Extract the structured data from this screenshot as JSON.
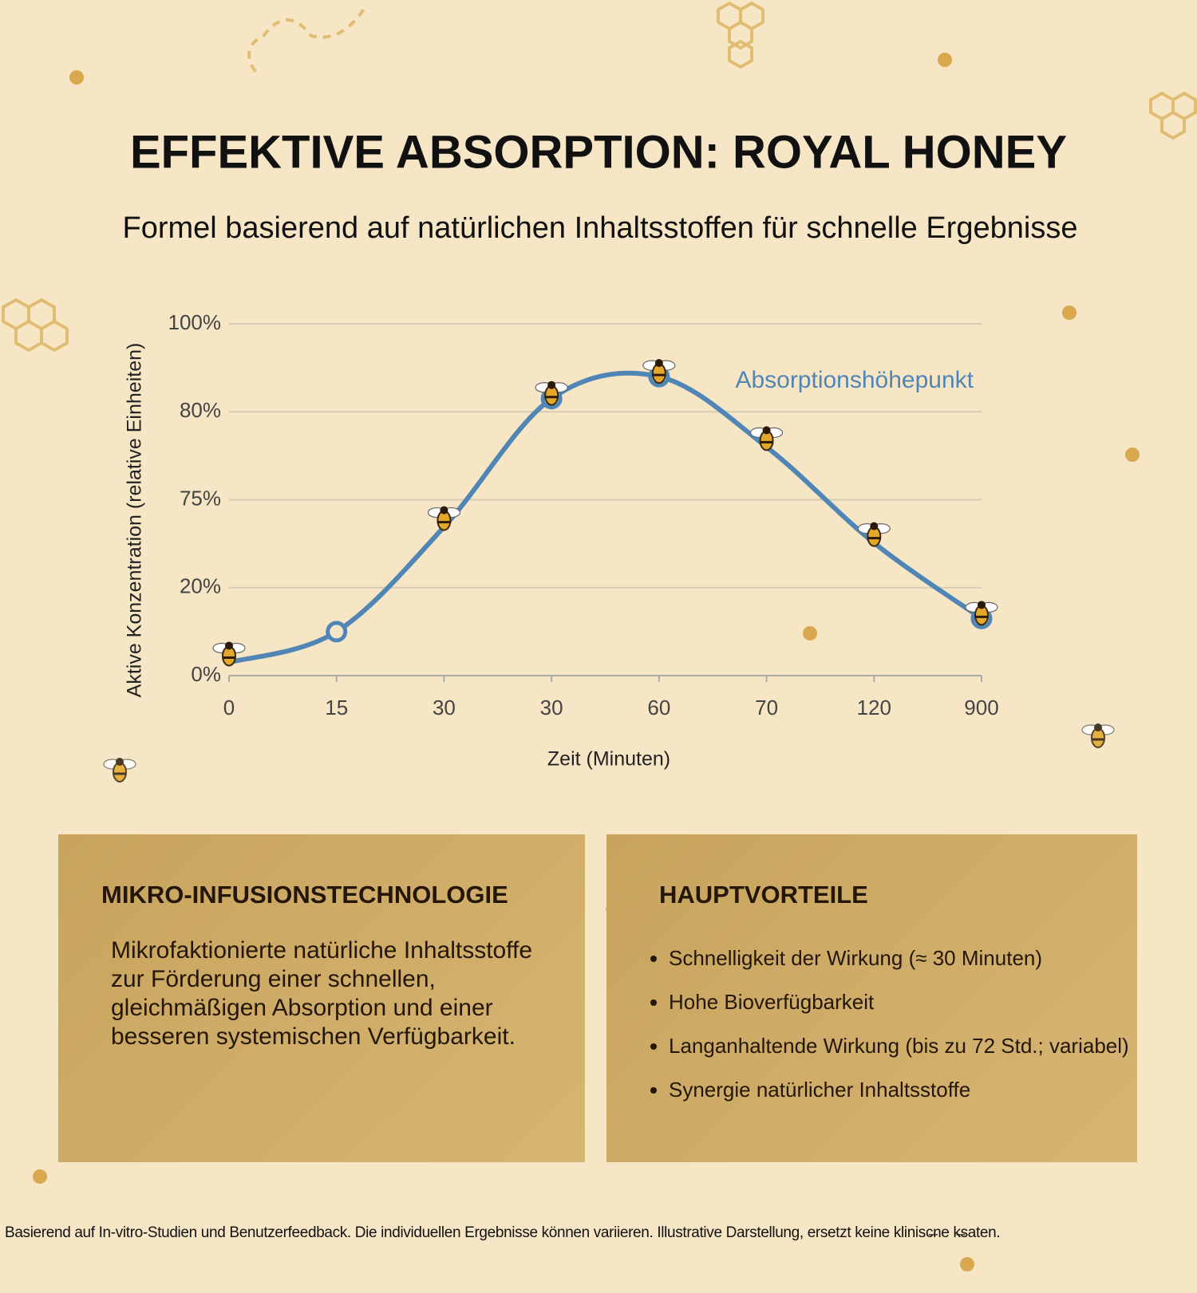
{
  "header": {
    "title": "EFFEKTIVE ABSORPTION: ROYAL HONEY",
    "subtitle": "Formel basierend auf natürlichen Inhaltsstoffen für schnelle Ergebnisse"
  },
  "chart_data": {
    "type": "line",
    "y_label": "Aktive Konzentration (relative Einheiten)",
    "x_label": "Zeit (Minuten)",
    "categories": [
      "0",
      "15",
      "30",
      "30",
      "60",
      "70",
      "120",
      "900"
    ],
    "values": [
      3,
      10,
      58,
      83,
      88,
      78,
      48,
      13
    ],
    "color": "#4f86b5",
    "annotation": "Absorptionshöhepunkt",
    "ylim": [
      0,
      100
    ],
    "yticks": [
      {
        "value": 0,
        "label": "0%"
      },
      {
        "value": 20,
        "label": "20%"
      },
      {
        "value": 75,
        "label": "75%"
      },
      {
        "value": 80,
        "label": "80%"
      },
      {
        "value": 100,
        "label": "100%"
      }
    ],
    "grid": true
  },
  "panels": [
    {
      "title": "MIKRO-INFUSIONSTECHNOLOGIE",
      "text": "Mikrofaktionierte natürliche Inhaltsstoffe zur Förderung einer schnellen, gleichmäßigen Absorption und einer besseren systemischen Verfügbarkeit."
    },
    {
      "title": "HAUPTVORTEILE",
      "items": [
        "Schnelligkeit der Wirkung (≈ 30 Minuten)",
        "Hohe Bioverfügbarkeit",
        "Langanhaltende Wirkung (bis zu 72 Std.; variabel)",
        "Synergie natürlicher Inhaltsstoffe"
      ]
    }
  ],
  "footer": "Basierend auf In-vitro-Studien und Benutzerfeedback. Die individuellen Ergebnisse können variieren. Illustrative Darstellung, ersetzt keine klinisc̶ne k̶saten."
}
